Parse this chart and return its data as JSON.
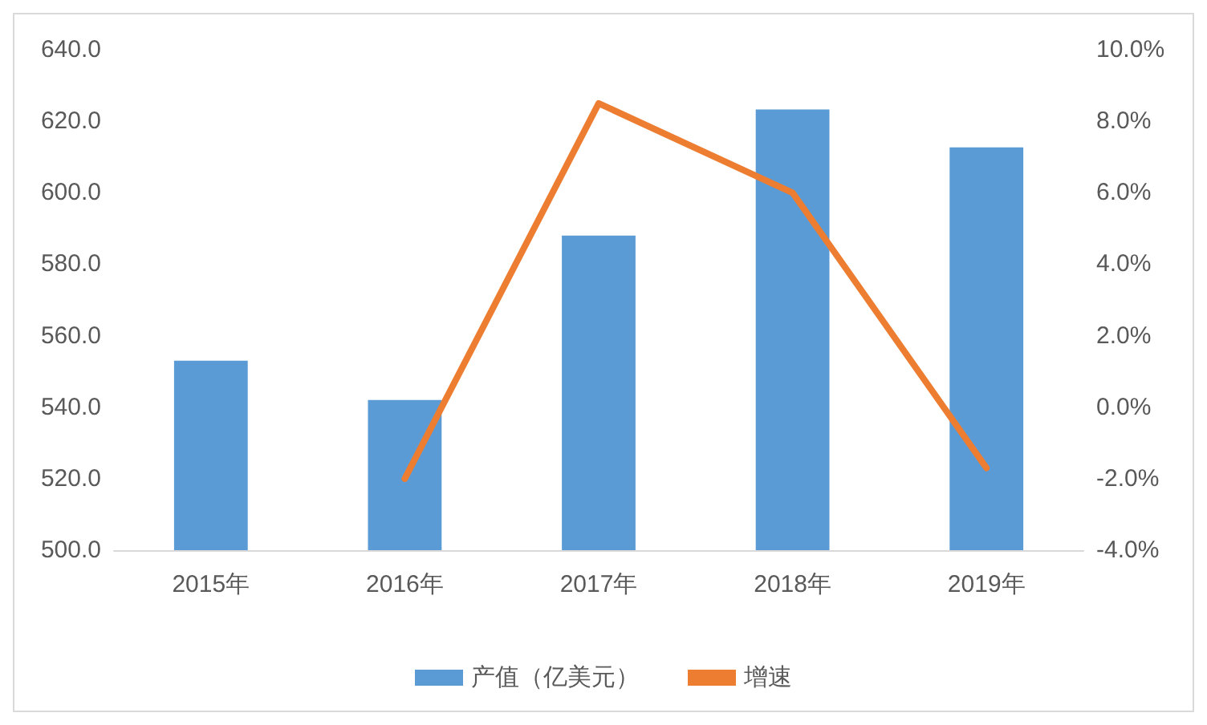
{
  "chart_data": {
    "type": "bar",
    "categories": [
      "2015年",
      "2016年",
      "2017年",
      "2018年",
      "2019年"
    ],
    "series": [
      {
        "name": "产值（亿美元）",
        "color": "#5b9bd5",
        "values": [
          553,
          542,
          588,
          623.3,
          612.7
        ]
      },
      {
        "name": "增速",
        "type": "line",
        "axis": "y2",
        "color": "#ed7d31",
        "values": [
          null,
          -2.0,
          8.5,
          6.0,
          -1.7
        ]
      }
    ],
    "ylim": [
      500,
      640
    ],
    "yticks": [
      {
        "value": 500,
        "label": "500.0"
      },
      {
        "value": 520,
        "label": "520.0"
      },
      {
        "value": 540,
        "label": "540.0"
      },
      {
        "value": 560,
        "label": "560.0"
      },
      {
        "value": 580,
        "label": "580.0"
      },
      {
        "value": 600,
        "label": "600.0"
      },
      {
        "value": 620,
        "label": "620.0"
      },
      {
        "value": 640,
        "label": "640.0"
      }
    ],
    "y2lim": [
      -4,
      10
    ],
    "y2ticks": [
      {
        "value": -4,
        "label": "-4.0%"
      },
      {
        "value": -2,
        "label": "-2.0%"
      },
      {
        "value": 0,
        "label": "0.0%"
      },
      {
        "value": 2,
        "label": "2.0%"
      },
      {
        "value": 4,
        "label": "4.0%"
      },
      {
        "value": 6,
        "label": "6.0%"
      },
      {
        "value": 8,
        "label": "8.0%"
      },
      {
        "value": 10,
        "label": "10.0%"
      }
    ],
    "legend": "bottom",
    "grid": false,
    "marker": "none",
    "line_style": "solid"
  }
}
